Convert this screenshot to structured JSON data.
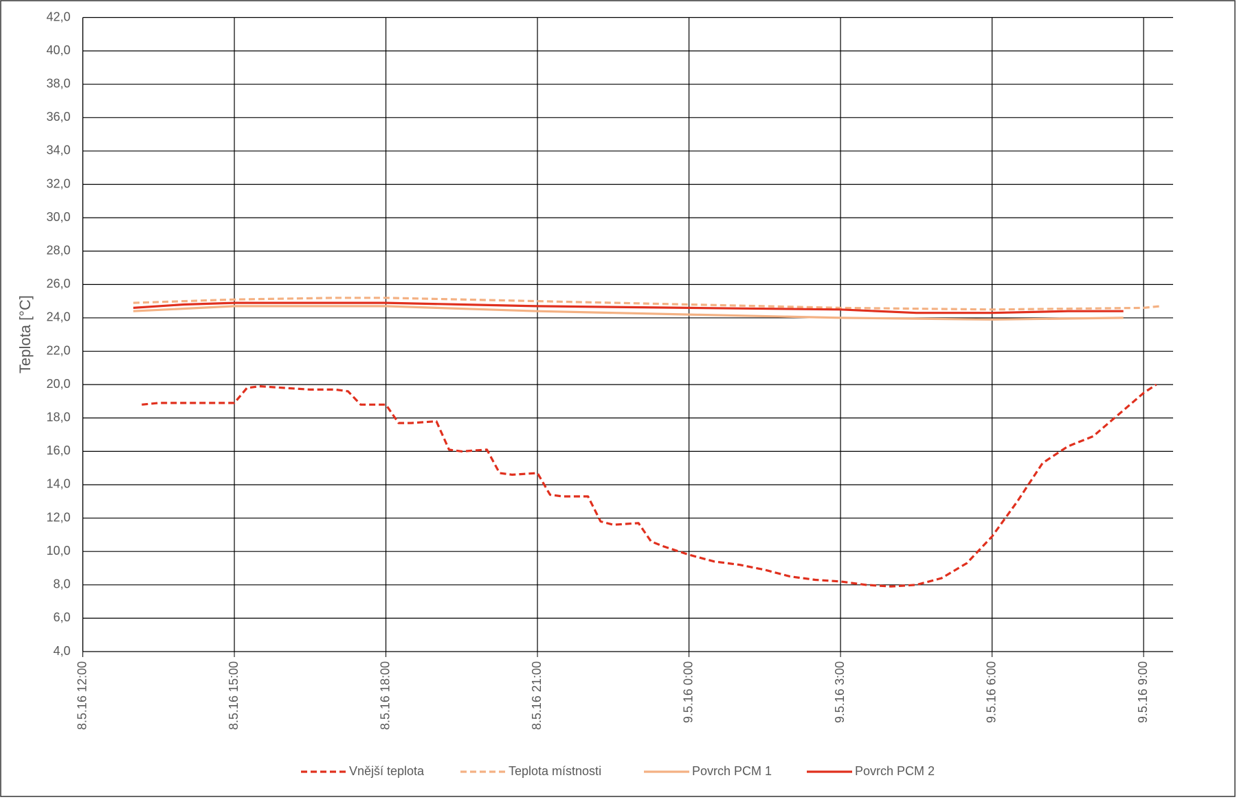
{
  "chart_data": {
    "type": "line",
    "ylabel": "Teplota [°C]",
    "ylim": [
      4,
      42
    ],
    "yticks": [
      {
        "value": 4,
        "label": "4,0"
      },
      {
        "value": 6,
        "label": "6,0"
      },
      {
        "value": 8,
        "label": "8,0"
      },
      {
        "value": 10,
        "label": "10,0"
      },
      {
        "value": 12,
        "label": "12,0"
      },
      {
        "value": 14,
        "label": "14,0"
      },
      {
        "value": 16,
        "label": "16,0"
      },
      {
        "value": 18,
        "label": "18,0"
      },
      {
        "value": 20,
        "label": "20,0"
      },
      {
        "value": 22,
        "label": "22,0"
      },
      {
        "value": 24,
        "label": "24,0"
      },
      {
        "value": 26,
        "label": "26,0"
      },
      {
        "value": 28,
        "label": "28,0"
      },
      {
        "value": 30,
        "label": "30,0"
      },
      {
        "value": 32,
        "label": "32,0"
      },
      {
        "value": 34,
        "label": "34,0"
      },
      {
        "value": 36,
        "label": "36,0"
      },
      {
        "value": 38,
        "label": "38,0"
      },
      {
        "value": 40,
        "label": "40,0"
      },
      {
        "value": 42,
        "label": "42,0"
      }
    ],
    "xlim": [
      "8.5.16 12:00",
      "9.5.16 9:35"
    ],
    "xticks": [
      "8.5.16 12:00",
      "8.5.16 15:00",
      "8.5.16 18:00",
      "8.5.16 21:00",
      "9.5.16 0:00",
      "9.5.16 3:00",
      "9.5.16 6:00",
      "9.5.16 9:00"
    ],
    "grid": true,
    "legend": "bottom",
    "series": [
      {
        "name": "Vnější teplota",
        "color": "#e0301e",
        "dashed": true,
        "x": [
          "8.5.16 13:10",
          "8.5.16 13:30",
          "8.5.16 14:00",
          "8.5.16 14:30",
          "8.5.16 15:00",
          "8.5.16 15:15",
          "8.5.16 15:30",
          "8.5.16 16:00",
          "8.5.16 16:30",
          "8.5.16 17:00",
          "8.5.16 17:15",
          "8.5.16 17:30",
          "8.5.16 18:00",
          "8.5.16 18:15",
          "8.5.16 18:30",
          "8.5.16 19:00",
          "8.5.16 19:15",
          "8.5.16 19:30",
          "8.5.16 20:00",
          "8.5.16 20:15",
          "8.5.16 20:30",
          "8.5.16 21:00",
          "8.5.16 21:15",
          "8.5.16 21:30",
          "8.5.16 22:00",
          "8.5.16 22:15",
          "8.5.16 22:30",
          "8.5.16 23:00",
          "8.5.16 23:15",
          "8.5.16 23:30",
          "9.5.16 0:00",
          "9.5.16 0:30",
          "9.5.16 1:00",
          "9.5.16 1:30",
          "9.5.16 2:00",
          "9.5.16 2:30",
          "9.5.16 3:00",
          "9.5.16 3:30",
          "9.5.16 4:00",
          "9.5.16 4:30",
          "9.5.16 5:00",
          "9.5.16 5:30",
          "9.5.16 6:00",
          "9.5.16 6:30",
          "9.5.16 7:00",
          "9.5.16 7:30",
          "9.5.16 8:00",
          "9.5.16 8:30",
          "9.5.16 9:00",
          "9.5.16 9:15"
        ],
        "values": [
          18.8,
          18.9,
          18.9,
          18.9,
          18.9,
          19.8,
          19.9,
          19.8,
          19.7,
          19.7,
          19.6,
          18.8,
          18.8,
          17.7,
          17.7,
          17.8,
          16.1,
          16.0,
          16.1,
          14.7,
          14.6,
          14.7,
          13.4,
          13.3,
          13.3,
          11.8,
          11.6,
          11.7,
          10.6,
          10.3,
          9.8,
          9.4,
          9.2,
          8.9,
          8.5,
          8.3,
          8.2,
          8.0,
          7.9,
          8.0,
          8.4,
          9.3,
          10.9,
          13.0,
          15.3,
          16.3,
          16.9,
          18.2,
          19.5,
          20.0
        ]
      },
      {
        "name": "Teplota místnosti",
        "color": "#f4b183",
        "dashed": true,
        "x": [
          "8.5.16 13:00",
          "8.5.16 15:00",
          "8.5.16 17:00",
          "8.5.16 18:00",
          "8.5.16 21:00",
          "9.5.16 0:00",
          "9.5.16 3:00",
          "9.5.16 6:00",
          "9.5.16 9:00",
          "9.5.16 9:20"
        ],
        "values": [
          24.9,
          25.1,
          25.2,
          25.2,
          25.0,
          24.8,
          24.6,
          24.5,
          24.6,
          24.7
        ]
      },
      {
        "name": "Povrch PCM 1",
        "color": "#f4b183",
        "dashed": false,
        "x": [
          "8.5.16 13:00",
          "8.5.16 15:00",
          "8.5.16 18:00",
          "8.5.16 19:00",
          "8.5.16 21:00",
          "9.5.16 0:00",
          "9.5.16 3:00",
          "9.5.16 6:00",
          "9.5.16 8:36"
        ],
        "values": [
          24.4,
          24.7,
          24.7,
          24.6,
          24.4,
          24.2,
          24.0,
          23.9,
          24.0
        ]
      },
      {
        "name": "Povrch PCM 2",
        "color": "#e0301e",
        "dashed": false,
        "x": [
          "8.5.16 13:00",
          "8.5.16 14:00",
          "8.5.16 15:00",
          "8.5.16 18:00",
          "8.5.16 19:30",
          "8.5.16 21:00",
          "9.5.16 0:00",
          "9.5.16 3:00",
          "9.5.16 4:30",
          "9.5.16 6:00",
          "9.5.16 7:30",
          "9.5.16 8:36"
        ],
        "values": [
          24.6,
          24.8,
          24.9,
          24.9,
          24.8,
          24.7,
          24.6,
          24.5,
          24.3,
          24.3,
          24.4,
          24.4
        ]
      }
    ]
  }
}
